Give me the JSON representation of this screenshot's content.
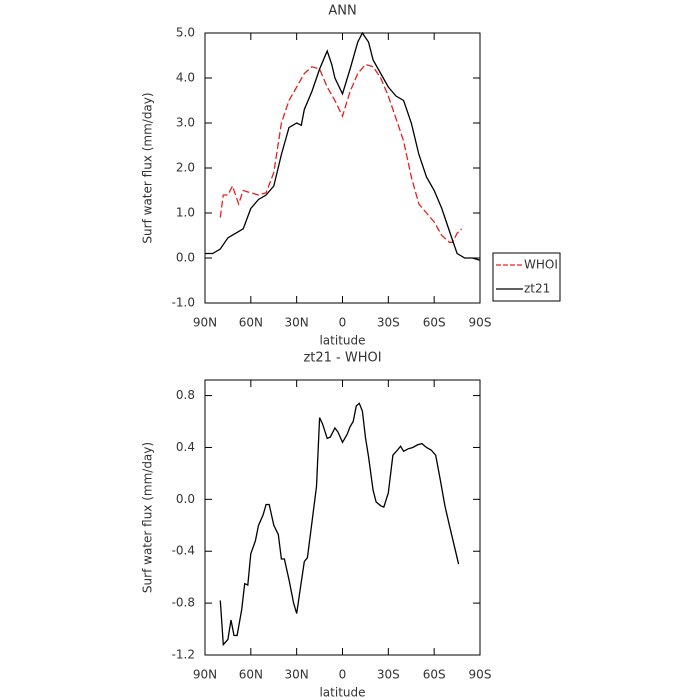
{
  "chart_data": [
    {
      "type": "line",
      "title": "ANN",
      "xlabel": "latitude",
      "ylabel": "Surf water flux (mm/day)",
      "xlim": [
        90,
        -90
      ],
      "xticks": [
        {
          "value": 90,
          "label": "90N"
        },
        {
          "value": 60,
          "label": "60N"
        },
        {
          "value": 30,
          "label": "30N"
        },
        0,
        {
          "value": -30,
          "label": "30S"
        },
        {
          "value": -60,
          "label": "60S"
        },
        {
          "value": -90,
          "label": "90S"
        }
      ],
      "ylim": [
        -1,
        5
      ],
      "yticks": [
        {
          "value": -1,
          "label": "-1.0"
        },
        {
          "value": 0,
          "label": "0.0"
        },
        {
          "value": 1,
          "label": "1.0"
        },
        {
          "value": 2,
          "label": "2.0"
        },
        {
          "value": 3,
          "label": "3.0"
        },
        {
          "value": 4,
          "label": "4.0"
        },
        {
          "value": 5,
          "label": "5.0"
        }
      ],
      "legend": "right",
      "series": [
        {
          "name": "WHOI",
          "color": "#e8211d",
          "dash": true,
          "x": [
            80,
            78,
            75,
            72,
            68,
            65,
            60,
            55,
            50,
            45,
            40,
            35,
            30,
            25,
            20,
            15,
            10,
            5,
            0,
            -5,
            -10,
            -15,
            -20,
            -25,
            -30,
            -35,
            -40,
            -45,
            -50,
            -55,
            -60,
            -65,
            -70,
            -72,
            -75,
            -78
          ],
          "values": [
            0.9,
            1.4,
            1.4,
            1.6,
            1.2,
            1.5,
            1.45,
            1.4,
            1.45,
            1.9,
            3.0,
            3.5,
            3.8,
            4.1,
            4.25,
            4.2,
            3.8,
            3.5,
            3.15,
            3.7,
            4.1,
            4.3,
            4.25,
            4.0,
            3.6,
            3.1,
            2.6,
            1.8,
            1.2,
            1.0,
            0.8,
            0.5,
            0.35,
            0.35,
            0.55,
            0.65
          ]
        },
        {
          "name": "zt21",
          "color": "#000000",
          "dash": false,
          "x": [
            90,
            85,
            80,
            75,
            70,
            65,
            60,
            55,
            50,
            45,
            40,
            35,
            30,
            27,
            25,
            20,
            15,
            10,
            7,
            5,
            0,
            -5,
            -10,
            -13,
            -17,
            -20,
            -25,
            -30,
            -35,
            -40,
            -45,
            -50,
            -55,
            -60,
            -65,
            -70,
            -75,
            -80,
            -85,
            -90
          ],
          "values": [
            0.1,
            0.1,
            0.2,
            0.45,
            0.55,
            0.65,
            1.1,
            1.3,
            1.4,
            1.6,
            2.3,
            2.9,
            3.0,
            2.95,
            3.3,
            3.7,
            4.2,
            4.6,
            4.3,
            4.0,
            3.65,
            4.2,
            4.8,
            5.0,
            4.8,
            4.4,
            4.1,
            3.8,
            3.6,
            3.5,
            3.0,
            2.3,
            1.8,
            1.5,
            1.1,
            0.6,
            0.1,
            0.0,
            0.0,
            -0.05
          ]
        }
      ]
    },
    {
      "type": "line",
      "title": "zt21 - WHOI",
      "xlabel": "latitude",
      "ylabel": "Surf water flux (mm/day)",
      "xlim": [
        90,
        -90
      ],
      "xticks": [
        {
          "value": 90,
          "label": "90N"
        },
        {
          "value": 60,
          "label": "60N"
        },
        {
          "value": 30,
          "label": "30N"
        },
        0,
        {
          "value": -30,
          "label": "30S"
        },
        {
          "value": -60,
          "label": "60S"
        },
        {
          "value": -90,
          "label": "90S"
        }
      ],
      "ylim": [
        -1.2,
        0.92
      ],
      "yticks": [
        -1.2,
        -0.8,
        -0.4,
        {
          "value": 0,
          "label": "0.0"
        },
        0.4,
        0.8
      ],
      "series": [
        {
          "color": "#000000",
          "dash": false,
          "x": [
            80,
            78,
            75,
            73,
            71,
            69,
            66,
            64,
            62,
            60,
            57,
            55,
            52,
            50,
            48,
            45,
            42,
            40,
            38,
            35,
            32,
            30,
            28,
            25,
            23,
            20,
            17,
            15,
            13,
            10,
            8,
            5,
            3,
            0,
            -3,
            -5,
            -7,
            -9,
            -11,
            -13,
            -15,
            -17,
            -20,
            -22,
            -25,
            -27,
            -30,
            -33,
            -36,
            -38,
            -40,
            -43,
            -46,
            -49,
            -52,
            -55,
            -58,
            -61,
            -64,
            -67,
            -70,
            -73,
            -76
          ],
          "values": [
            -0.78,
            -1.12,
            -1.08,
            -0.93,
            -1.05,
            -1.05,
            -0.85,
            -0.65,
            -0.66,
            -0.42,
            -0.32,
            -0.2,
            -0.12,
            -0.04,
            -0.04,
            -0.2,
            -0.27,
            -0.46,
            -0.46,
            -0.62,
            -0.8,
            -0.88,
            -0.72,
            -0.48,
            -0.45,
            -0.18,
            0.1,
            0.63,
            0.58,
            0.47,
            0.48,
            0.55,
            0.52,
            0.44,
            0.5,
            0.56,
            0.6,
            0.72,
            0.74,
            0.68,
            0.48,
            0.33,
            0.07,
            -0.02,
            -0.05,
            -0.06,
            0.05,
            0.34,
            0.38,
            0.41,
            0.37,
            0.39,
            0.4,
            0.42,
            0.43,
            0.4,
            0.38,
            0.34,
            0.15,
            -0.05,
            -0.2,
            -0.35,
            -0.5
          ]
        }
      ]
    }
  ]
}
